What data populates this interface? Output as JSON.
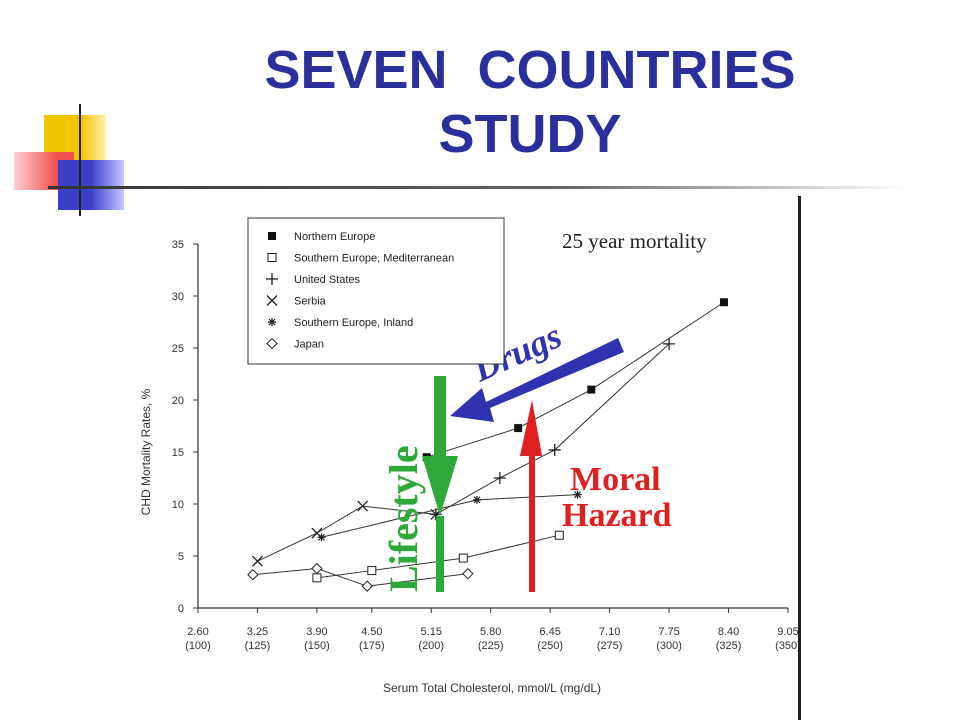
{
  "slide": {
    "title_line1": "SEVEN  COUNTRIES",
    "title_line2": "STUDY"
  },
  "colors": {
    "title": "#2b2f9c",
    "drugs": "#3033b0",
    "lifestyle": "#2fa83a",
    "moral_hazard": "#e02020",
    "deco_yellow": "#f2c400",
    "deco_blue": "#3a3fc8",
    "deco_red": "#f05050"
  },
  "chart_data": {
    "type": "line",
    "annotation": "25 year mortality",
    "xlabel": "Serum Total Cholesterol, mmol/L (mg/dL)",
    "ylabel": "CHD Mortality Rates, %",
    "ylim": [
      0,
      35
    ],
    "yticks": [
      "0",
      "5",
      "10",
      "15",
      "20",
      "25",
      "30",
      "35"
    ],
    "xlim": [
      2.6,
      9.05
    ],
    "xticks": [
      {
        "v": 2.6,
        "l1": "2.60",
        "l2": "(100)"
      },
      {
        "v": 3.25,
        "l1": "3.25",
        "l2": "(125)"
      },
      {
        "v": 3.9,
        "l1": "3.90",
        "l2": "(150)"
      },
      {
        "v": 4.5,
        "l1": "4.50",
        "l2": "(175)"
      },
      {
        "v": 5.15,
        "l1": "5.15",
        "l2": "(200)"
      },
      {
        "v": 5.8,
        "l1": "5.80",
        "l2": "(225)"
      },
      {
        "v": 6.45,
        "l1": "6.45",
        "l2": "(250)"
      },
      {
        "v": 7.1,
        "l1": "7.10",
        "l2": "(275)"
      },
      {
        "v": 7.75,
        "l1": "7.75",
        "l2": "(300)"
      },
      {
        "v": 8.4,
        "l1": "8.40",
        "l2": "(325)"
      },
      {
        "v": 9.05,
        "l1": "9.05",
        "l2": "(350)"
      }
    ],
    "legend_position": "top-left",
    "series": [
      {
        "name": "Northern Europe",
        "marker": "square-filled",
        "x": [
          5.1,
          6.1,
          6.9,
          8.35
        ],
        "y": [
          14.5,
          17.3,
          21.0,
          29.4
        ]
      },
      {
        "name": "Southern Europe, Mediterranean",
        "marker": "square-open",
        "x": [
          3.9,
          4.5,
          5.5,
          6.55
        ],
        "y": [
          2.9,
          3.6,
          4.8,
          7.0
        ]
      },
      {
        "name": "United States",
        "marker": "plus",
        "x": [
          5.2,
          5.9,
          6.5,
          7.75
        ],
        "y": [
          9.0,
          12.5,
          15.2,
          25.4
        ]
      },
      {
        "name": "Serbia",
        "marker": "cross",
        "x": [
          3.25,
          3.9,
          4.4,
          5.2
        ],
        "y": [
          4.5,
          7.2,
          9.8,
          9.0
        ]
      },
      {
        "name": "Southern Europe, Inland",
        "marker": "asterisk",
        "x": [
          3.95,
          5.65,
          6.75
        ],
        "y": [
          6.8,
          10.4,
          10.9
        ]
      },
      {
        "name": "Japan",
        "marker": "diamond-open",
        "x": [
          3.2,
          3.9,
          4.45,
          5.55
        ],
        "y": [
          3.2,
          3.8,
          2.1,
          3.3
        ]
      }
    ],
    "overlays": [
      {
        "label": "Drugs",
        "kind": "arrow"
      },
      {
        "label": "Lifestyle",
        "kind": "arrow"
      },
      {
        "label": "Moral",
        "kind": "text"
      },
      {
        "label": "Hazard",
        "kind": "text"
      }
    ]
  }
}
